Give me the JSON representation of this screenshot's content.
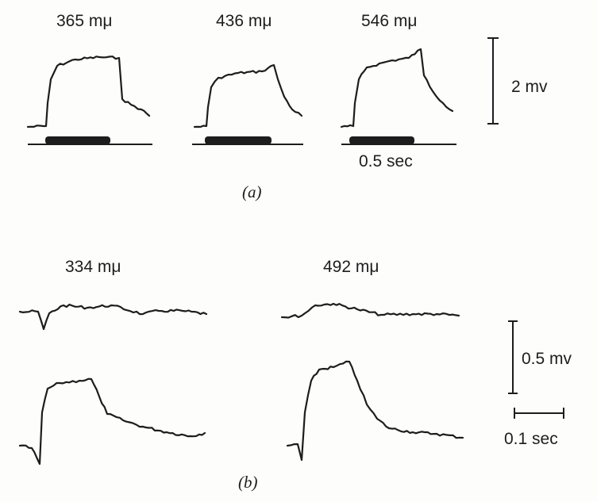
{
  "panel_a": {
    "label": "(a)",
    "traces": [
      {
        "wavelength": "365 mμ"
      },
      {
        "wavelength": "436 mμ"
      },
      {
        "wavelength": "546 mμ"
      }
    ],
    "voltage_scale": "2 mv",
    "time_scale": "0.5 sec"
  },
  "panel_b": {
    "label": "(b)",
    "traces": [
      {
        "wavelength": "334 mμ"
      },
      {
        "wavelength": "492 mμ"
      }
    ],
    "voltage_scale": "0.5 mv",
    "time_scale": "0.1 sec"
  },
  "colors": {
    "ink": "#1d1d1d",
    "background": "#fdfdfc"
  }
}
